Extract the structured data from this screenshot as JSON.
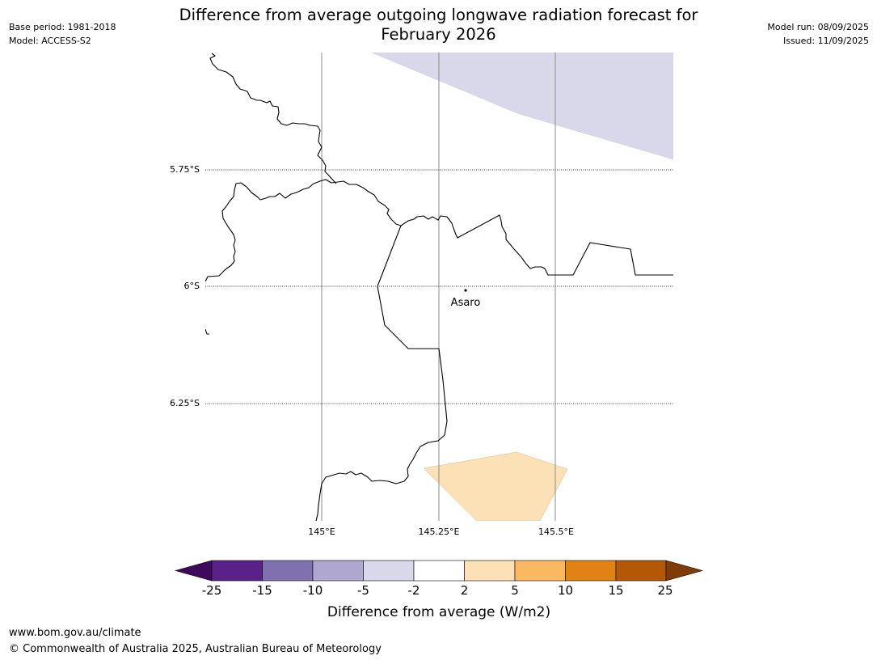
{
  "header": {
    "base_period": "Base period: 1981-2018",
    "model": "Model: ACCESS-S2",
    "title_line1": "Difference from average outgoing longwave radiation forecast for",
    "title_line2": "February 2026",
    "model_run": "Model run: 08/09/2025",
    "issued": "Issued: 11/09/2025"
  },
  "map": {
    "lat_labels": [
      "5.75°S",
      "6°S",
      "6.25°S"
    ],
    "lon_labels": [
      "145°E",
      "145.25°E",
      "145.5°E"
    ],
    "place": {
      "name": "Asaro"
    },
    "anomaly_areas": [
      {
        "category": "-5 to -2",
        "color": "#d8d8ea"
      },
      {
        "category": "2 to 5",
        "color": "#fce0b6"
      }
    ]
  },
  "colorbar": {
    "label": "Difference from average (W/m2)",
    "ticks": [
      "-25",
      "-15",
      "-10",
      "-5",
      "-2",
      "2",
      "5",
      "10",
      "15",
      "25"
    ],
    "colors": [
      "#3f0a5c",
      "#5a2288",
      "#8070ae",
      "#b0a7d1",
      "#d8d8ea",
      "#ffffff",
      "#fce0b6",
      "#fbb862",
      "#e08314",
      "#b35806",
      "#7f3b08"
    ]
  },
  "footer": {
    "url": "www.bom.gov.au/climate",
    "copyright": "© Commonwealth of Australia 2025, Australian Bureau of Meteorology"
  }
}
